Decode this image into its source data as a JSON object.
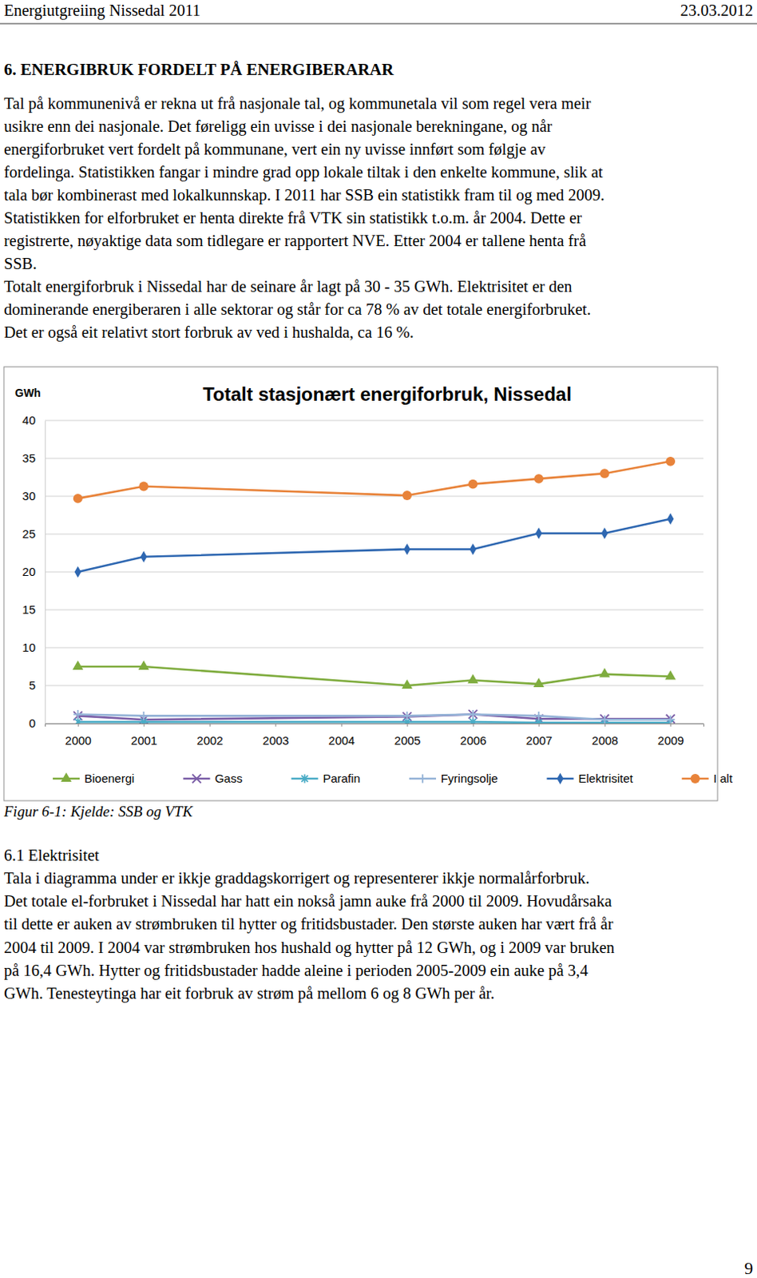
{
  "header": {
    "left": "Energiutgreiing Nissedal 2011",
    "right": "23.03.2012"
  },
  "heading": "6.  ENERGIBRUK FORDELT PÅ ENERGIBERARAR",
  "body": {
    "lines": [
      "Tal på kommunenivå er rekna ut frå nasjonale tal, og kommunetala vil som regel vera meir",
      "usikre enn dei nasjonale. Det føreligg ein uvisse i dei nasjonale berekningane, og når",
      "energiforbruket vert fordelt på kommunane, vert ein ny uvisse innført som følgje av",
      "fordelinga. Statistikken fangar i mindre grad opp lokale tiltak i den enkelte kommune, slik at",
      "tala bør kombinerast med lokalkunnskap. I 2011 har SSB ein statistikk fram til og med 2009.",
      "Statistikken for elforbruket er henta direkte frå VTK sin statistikk t.o.m. år 2004. Dette er",
      "registrerte, nøyaktige data som tidlegare er rapportert NVE. Etter 2004 er tallene henta frå",
      "SSB.",
      "Totalt energiforbruk i Nissedal har de seinare år lagt på 30 - 35 GWh. Elektrisitet er den",
      "dominerande energiberaren i alle sektorar og står for ca 78 % av det totale energiforbruket.",
      "Det er også eit relativt stort forbruk av ved i hushalda, ca 16 %."
    ]
  },
  "chart_data": {
    "type": "line",
    "title": "Totalt stasjonært energiforbruk, Nissedal",
    "ylabel": "GWh",
    "x": [
      2000,
      2001,
      2005,
      2006,
      2007,
      2008,
      2009
    ],
    "xlim": [
      1999.5,
      2009.5
    ],
    "xticks": [
      2000,
      2001,
      2002,
      2003,
      2004,
      2005,
      2006,
      2007,
      2008,
      2009
    ],
    "ylim": [
      0,
      40
    ],
    "yticks": [
      0,
      5,
      10,
      15,
      20,
      25,
      30,
      35,
      40
    ],
    "grid": true,
    "legend": "bottom",
    "series": [
      {
        "name": "Bioenergi",
        "color": "#7fac3e",
        "marker": "triangle",
        "values": [
          7.5,
          7.5,
          5.0,
          5.7,
          5.2,
          6.5,
          6.2
        ]
      },
      {
        "name": "Gass",
        "color": "#7b5ea7",
        "marker": "x",
        "values": [
          1.0,
          0.5,
          0.9,
          1.2,
          0.6,
          0.6,
          0.6
        ]
      },
      {
        "name": "Parafin",
        "color": "#4bacc6",
        "marker": "asterisk",
        "values": [
          0.2,
          0.2,
          0.2,
          0.2,
          0.1,
          0.1,
          0.1
        ]
      },
      {
        "name": "Fyringsolje",
        "color": "#95b3d7",
        "marker": "plus",
        "values": [
          1.2,
          1.0,
          1.0,
          1.2,
          1.0,
          0.5,
          0.5
        ]
      },
      {
        "name": "Elektrisitet",
        "color": "#2e67b1",
        "marker": "diamond",
        "values": [
          20.0,
          22.0,
          23.0,
          23.0,
          25.1,
          25.1,
          27.0
        ]
      },
      {
        "name": "I alt",
        "color": "#e8833a",
        "marker": "circle",
        "values": [
          29.7,
          31.3,
          30.1,
          31.6,
          32.3,
          33.0,
          34.6
        ]
      }
    ]
  },
  "caption": "Figur 6-1: Kjelde: SSB og VTK",
  "subsection": {
    "title": "6.1 Elektrisitet",
    "lines": [
      "Tala i diagramma under er ikkje graddagskorrigert og representerer ikkje normalårforbruk.",
      "Det totale el-forbruket i Nissedal har hatt ein nokså jamn auke frå 2000 til 2009. Hovudårsaka",
      "til dette er auken av strømbruken til hytter og fritidsbustader. Den største auken har vært frå år",
      "2004 til 2009. I 2004 var strømbruken hos hushald og hytter på 12 GWh, og i 2009 var bruken",
      "på 16,4 GWh. Hytter og fritidsbustader hadde aleine i perioden 2005-2009 ein auke på 3,4",
      "GWh. Tenesteytinga har eit forbruk av strøm på mellom 6 og 8 GWh per år."
    ]
  },
  "page_number": "9"
}
